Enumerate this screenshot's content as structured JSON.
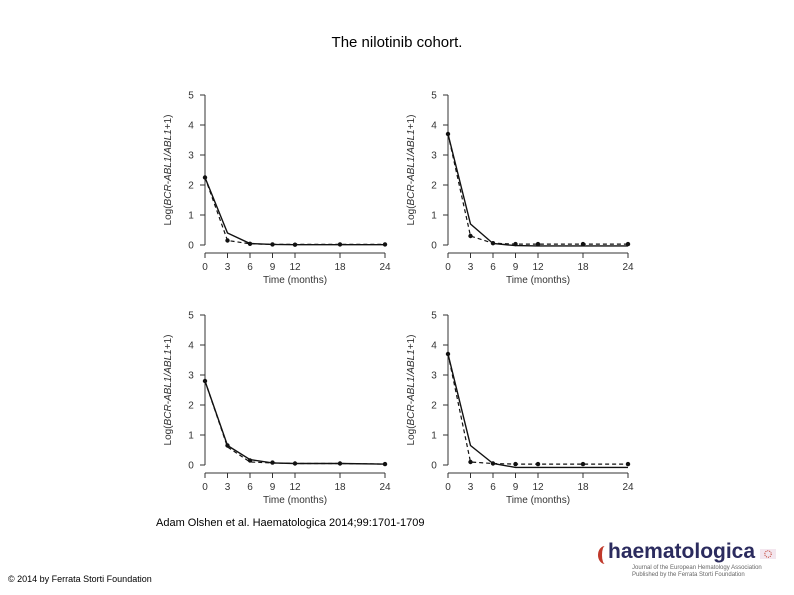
{
  "title": "The nilotinib cohort.",
  "citation": "Adam Olshen et al. Haematologica 2014;99:1701-1709",
  "copyright": "© 2014 by Ferrata Storti Foundation",
  "logo": {
    "name": "haematologica",
    "subtitle_line1": "Journal of the European Hematology Association",
    "subtitle_line2": "Published by the Ferrata Storti Foundation",
    "flag_icon": "eu-flag-icon",
    "accent": "#c0392b",
    "brand": "#2b2b5e"
  },
  "chart_data": [
    {
      "type": "line",
      "xlabel": "Time (months)",
      "ylabel_parts": [
        "Log(",
        "BCR-ABL1/ABL1",
        "+1)"
      ],
      "xticks": [
        0,
        3,
        6,
        9,
        12,
        18,
        24
      ],
      "yticks": [
        0,
        1,
        2,
        3,
        4,
        5
      ],
      "xlim": [
        0,
        24
      ],
      "ylim": [
        0,
        5
      ],
      "points": {
        "x": [
          0,
          3,
          6,
          9,
          12,
          18,
          24
        ],
        "y": [
          2.25,
          0.15,
          0.04,
          0.02,
          0.01,
          0.02,
          0.02
        ]
      },
      "series": [
        {
          "style": "solid",
          "x": [
            0,
            3,
            6,
            9,
            12,
            18,
            24
          ],
          "y": [
            2.25,
            0.4,
            0.05,
            0.02,
            0.01,
            0.01,
            0.01
          ]
        },
        {
          "style": "dashed",
          "x": [
            0,
            3,
            6,
            9,
            12,
            18,
            24
          ],
          "y": [
            2.25,
            0.15,
            0.04,
            0.02,
            0.02,
            0.02,
            0.02
          ]
        }
      ]
    },
    {
      "type": "line",
      "xlabel": "Time (months)",
      "ylabel_parts": [
        "Log(",
        "BCR-ABL1/ABL1",
        "+1)"
      ],
      "xticks": [
        0,
        3,
        6,
        9,
        12,
        18,
        24
      ],
      "yticks": [
        0,
        1,
        2,
        3,
        4,
        5
      ],
      "xlim": [
        0,
        24
      ],
      "ylim": [
        0,
        5
      ],
      "points": {
        "x": [
          0,
          3,
          6,
          9,
          12,
          18,
          24
        ],
        "y": [
          3.7,
          0.3,
          0.06,
          0.03,
          0.03,
          0.03,
          0.03
        ]
      },
      "series": [
        {
          "style": "solid",
          "x": [
            0,
            3,
            6,
            9,
            12,
            18,
            24
          ],
          "y": [
            3.7,
            0.7,
            0.05,
            -0.02,
            -0.03,
            -0.03,
            -0.03
          ]
        },
        {
          "style": "dashed",
          "x": [
            0,
            3,
            6,
            9,
            12,
            18,
            24
          ],
          "y": [
            3.7,
            0.3,
            0.06,
            0.03,
            0.03,
            0.03,
            0.03
          ]
        }
      ]
    },
    {
      "type": "line",
      "xlabel": "Time (months)",
      "ylabel_parts": [
        "Log(",
        "BCR-ABL1/ABL1",
        "+1)"
      ],
      "xticks": [
        0,
        3,
        6,
        9,
        12,
        18,
        24
      ],
      "yticks": [
        0,
        1,
        2,
        3,
        4,
        5
      ],
      "xlim": [
        0,
        24
      ],
      "ylim": [
        0,
        5
      ],
      "points": {
        "x": [
          0,
          3,
          6,
          9,
          12,
          18,
          24
        ],
        "y": [
          2.8,
          0.65,
          0.15,
          0.08,
          0.05,
          0.05,
          0.03
        ]
      },
      "series": [
        {
          "style": "solid",
          "x": [
            0,
            3,
            6,
            9,
            12,
            18,
            24
          ],
          "y": [
            2.8,
            0.65,
            0.18,
            0.07,
            0.05,
            0.05,
            0.03
          ]
        },
        {
          "style": "dashed",
          "x": [
            0,
            3,
            6,
            9,
            12,
            18,
            24
          ],
          "y": [
            2.8,
            0.6,
            0.1,
            0.07,
            0.05,
            0.05,
            0.03
          ]
        }
      ]
    },
    {
      "type": "line",
      "xlabel": "Time (months)",
      "ylabel_parts": [
        "Log(",
        "BCR-ABL1/ABL1",
        "+1)"
      ],
      "xticks": [
        0,
        3,
        6,
        9,
        12,
        18,
        24
      ],
      "yticks": [
        0,
        1,
        2,
        3,
        4,
        5
      ],
      "xlim": [
        0,
        24
      ],
      "ylim": [
        0,
        5
      ],
      "points": {
        "x": [
          0,
          3,
          6,
          9,
          12,
          18,
          24
        ],
        "y": [
          3.7,
          0.1,
          0.05,
          0.03,
          0.03,
          0.03,
          0.03
        ]
      },
      "series": [
        {
          "style": "solid",
          "x": [
            0,
            3,
            6,
            9,
            12,
            18,
            24
          ],
          "y": [
            3.7,
            0.65,
            0.05,
            -0.08,
            -0.08,
            -0.08,
            -0.08
          ]
        },
        {
          "style": "dashed",
          "x": [
            0,
            3,
            6,
            9,
            12,
            18,
            24
          ],
          "y": [
            3.7,
            0.1,
            0.05,
            0.03,
            0.03,
            0.03,
            0.03
          ]
        }
      ]
    }
  ]
}
